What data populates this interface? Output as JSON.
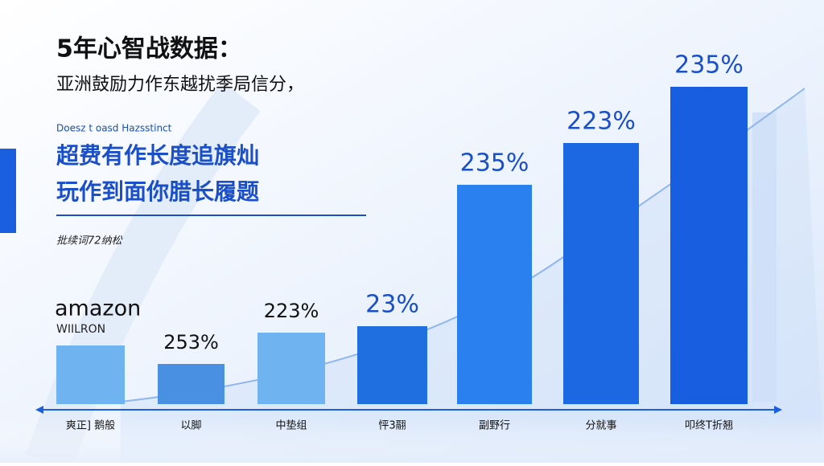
{
  "header": {
    "title": "5年心智战数据：",
    "subtitle": "亚洲鼓励力作东越扰季局信分，",
    "caption": "Doesz t oasd Hazsstinct",
    "headline": [
      "超费有作长度追旗灿",
      "玩作到面你腊长履题"
    ],
    "note": "批续词72纳松"
  },
  "brand": {
    "name": "amazon",
    "sub": "WIILRON"
  },
  "bars": [
    {
      "category": "爽正] 鹅般"
    },
    {
      "category": "以脚",
      "label": "253%"
    },
    {
      "category": "中垫组",
      "label": "223%"
    },
    {
      "category": "怦3翮",
      "label": "23%"
    },
    {
      "category": "副野行",
      "label": "235%"
    },
    {
      "category": "分就事",
      "label": "223%"
    },
    {
      "category": "叩终T折翘",
      "label": "235%"
    }
  ]
}
